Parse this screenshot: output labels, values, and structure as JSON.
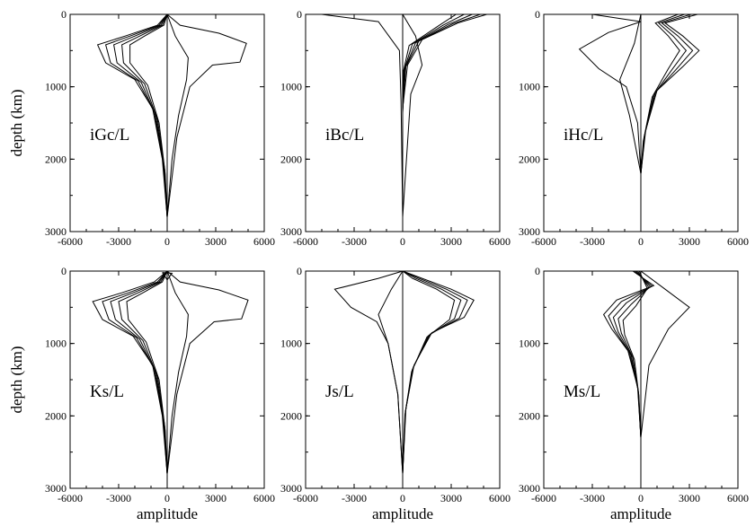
{
  "chart_data": [
    {
      "type": "line",
      "panel_label": "iGc/L",
      "xlim": [
        -6000,
        6000
      ],
      "ylim": [
        0,
        3000
      ],
      "y_inverted": true,
      "xticks": [
        "-6000",
        "-3000",
        "0",
        "3000",
        "6000"
      ],
      "yticks": [
        "0",
        "1000",
        "2000",
        "3000"
      ],
      "ylabel": "depth (km)",
      "xlabel": "",
      "series": [
        {
          "x": [
            0,
            -600,
            -2600,
            -4300,
            -3800,
            -2000,
            -900,
            -300,
            0
          ],
          "y": [
            0,
            150,
            300,
            420,
            670,
            900,
            1300,
            2000,
            2800
          ]
        },
        {
          "x": [
            0,
            -500,
            -2300,
            -3800,
            -3500,
            -1800,
            -800,
            -250,
            0
          ],
          "y": [
            0,
            150,
            300,
            420,
            670,
            920,
            1350,
            2050,
            2800
          ]
        },
        {
          "x": [
            0,
            -400,
            -2000,
            -3300,
            -3100,
            -1600,
            -700,
            -200,
            0
          ],
          "y": [
            0,
            150,
            300,
            420,
            670,
            940,
            1400,
            2100,
            2800
          ]
        },
        {
          "x": [
            0,
            -300,
            -1700,
            -2800,
            -2700,
            -1400,
            -600,
            -150,
            0
          ],
          "y": [
            0,
            150,
            300,
            420,
            670,
            960,
            1450,
            2150,
            2800
          ]
        },
        {
          "x": [
            0,
            -200,
            -1400,
            -2300,
            -2300,
            -1200,
            -500,
            -120,
            0
          ],
          "y": [
            0,
            150,
            300,
            420,
            670,
            980,
            1500,
            2200,
            2800
          ]
        },
        {
          "x": [
            0,
            800,
            3200,
            4900,
            4500,
            2800,
            1400,
            600,
            0
          ],
          "y": [
            0,
            150,
            260,
            400,
            660,
            700,
            1000,
            1700,
            2800
          ]
        },
        {
          "x": [
            0,
            500,
            1300,
            1200,
            700,
            300,
            0
          ],
          "y": [
            0,
            300,
            600,
            900,
            1400,
            2000,
            2800
          ]
        }
      ]
    },
    {
      "type": "line",
      "panel_label": "iBc/L",
      "xlim": [
        -6000,
        6000
      ],
      "ylim": [
        0,
        3000
      ],
      "y_inverted": true,
      "xticks": [
        "-6000",
        "-3000",
        "0",
        "3000",
        "6000"
      ],
      "yticks": [
        "0",
        "1000",
        "2000",
        "3000"
      ],
      "ylabel": "",
      "xlabel": "",
      "series": [
        {
          "x": [
            -5000,
            -1500,
            -200,
            -100,
            0
          ],
          "y": [
            0,
            100,
            500,
            1200,
            2800
          ]
        },
        {
          "x": [
            5200,
            3400,
            1200,
            300,
            0,
            0
          ],
          "y": [
            0,
            120,
            350,
            700,
            1300,
            2800
          ]
        },
        {
          "x": [
            4800,
            3100,
            1000,
            200,
            0,
            0
          ],
          "y": [
            0,
            130,
            370,
            720,
            1320,
            2800
          ]
        },
        {
          "x": [
            4300,
            2800,
            800,
            150,
            0,
            0
          ],
          "y": [
            0,
            140,
            390,
            740,
            1340,
            2800
          ]
        },
        {
          "x": [
            3800,
            2500,
            600,
            100,
            0,
            0
          ],
          "y": [
            0,
            150,
            410,
            760,
            1360,
            2800
          ]
        },
        {
          "x": [
            3300,
            2200,
            400,
            50,
            0,
            0
          ],
          "y": [
            0,
            160,
            430,
            780,
            1380,
            2800
          ]
        },
        {
          "x": [
            0,
            800,
            1200,
            500,
            0
          ],
          "y": [
            0,
            300,
            700,
            1100,
            2800
          ]
        }
      ]
    },
    {
      "type": "line",
      "panel_label": "iHc/L",
      "xlim": [
        -6000,
        6000
      ],
      "ylim": [
        0,
        3000
      ],
      "y_inverted": true,
      "xticks": [
        "-6000",
        "-3000",
        "0",
        "3000",
        "6000"
      ],
      "yticks": [
        "0",
        "1000",
        "2000",
        "3000"
      ],
      "ylabel": "",
      "xlabel": "",
      "series": [
        {
          "x": [
            -3000,
            0,
            -2000,
            -3800,
            -2600,
            -900,
            -200,
            0
          ],
          "y": [
            0,
            100,
            250,
            480,
            750,
            1000,
            1500,
            2200
          ]
        },
        {
          "x": [
            3500,
            1500,
            2600,
            3600,
            2600,
            1000,
            300,
            0
          ],
          "y": [
            0,
            120,
            300,
            500,
            720,
            1050,
            1600,
            2200
          ]
        },
        {
          "x": [
            3100,
            1300,
            2300,
            3200,
            2300,
            900,
            250,
            0
          ],
          "y": [
            0,
            120,
            300,
            500,
            730,
            1080,
            1650,
            2200
          ]
        },
        {
          "x": [
            2700,
            1100,
            2000,
            2800,
            2000,
            800,
            200,
            0
          ],
          "y": [
            0,
            120,
            300,
            500,
            740,
            1110,
            1700,
            2200
          ]
        },
        {
          "x": [
            2300,
            900,
            1700,
            2400,
            1700,
            700,
            150,
            0
          ],
          "y": [
            0,
            120,
            300,
            500,
            750,
            1140,
            1750,
            2200
          ]
        },
        {
          "x": [
            0,
            -400,
            -1300,
            -700,
            0
          ],
          "y": [
            0,
            400,
            900,
            1400,
            2200
          ]
        }
      ]
    },
    {
      "type": "line",
      "panel_label": "Ks/L",
      "xlim": [
        -6000,
        6000
      ],
      "ylim": [
        0,
        3000
      ],
      "y_inverted": true,
      "xticks": [
        "-6000",
        "-3000",
        "0",
        "3000",
        "6000"
      ],
      "yticks": [
        "0",
        "1000",
        "2000",
        "3000"
      ],
      "ylabel": "depth (km)",
      "xlabel": "amplitude",
      "series": [
        {
          "x": [
            0,
            -800,
            -2800,
            -4600,
            -4000,
            -2100,
            -900,
            -300,
            0
          ],
          "y": [
            0,
            150,
            300,
            420,
            670,
            900,
            1300,
            2000,
            2800
          ]
        },
        {
          "x": [
            0,
            -600,
            -2400,
            -4000,
            -3600,
            -1900,
            -800,
            -250,
            0
          ],
          "y": [
            0,
            150,
            300,
            420,
            670,
            920,
            1350,
            2050,
            2800
          ]
        },
        {
          "x": [
            0,
            -500,
            -2100,
            -3500,
            -3200,
            -1700,
            -700,
            -200,
            0
          ],
          "y": [
            0,
            150,
            300,
            420,
            670,
            940,
            1400,
            2100,
            2800
          ]
        },
        {
          "x": [
            0,
            -400,
            -1800,
            -3000,
            -2800,
            -1500,
            -600,
            -150,
            0
          ],
          "y": [
            0,
            150,
            300,
            420,
            670,
            960,
            1450,
            2150,
            2800
          ]
        },
        {
          "x": [
            0,
            -300,
            -1500,
            -2500,
            -2400,
            -1300,
            -500,
            -120,
            0
          ],
          "y": [
            0,
            150,
            300,
            420,
            670,
            980,
            1500,
            2200,
            2800
          ]
        },
        {
          "x": [
            0,
            800,
            3200,
            5000,
            4600,
            2900,
            1400,
            600,
            0
          ],
          "y": [
            0,
            150,
            260,
            400,
            660,
            700,
            1000,
            1700,
            2800
          ]
        },
        {
          "x": [
            -300,
            300,
            0,
            -300
          ],
          "y": [
            20,
            30,
            120,
            20
          ]
        },
        {
          "x": [
            0,
            500,
            1300,
            1200,
            700,
            300,
            0
          ],
          "y": [
            0,
            300,
            600,
            900,
            1400,
            2000,
            2800
          ]
        }
      ]
    },
    {
      "type": "line",
      "panel_label": "Js/L",
      "xlim": [
        -6000,
        6000
      ],
      "ylim": [
        0,
        3000
      ],
      "y_inverted": true,
      "xticks": [
        "-6000",
        "-3000",
        "0",
        "3000",
        "6000"
      ],
      "yticks": [
        "0",
        "1000",
        "2000",
        "3000"
      ],
      "ylabel": "",
      "xlabel": "amplitude",
      "series": [
        {
          "x": [
            0,
            1200,
            3000,
            4400,
            3800,
            1800,
            700,
            200,
            0
          ],
          "y": [
            0,
            100,
            250,
            400,
            640,
            850,
            1300,
            1900,
            2800
          ]
        },
        {
          "x": [
            0,
            1000,
            2700,
            4000,
            3500,
            1700,
            650,
            180,
            0
          ],
          "y": [
            0,
            100,
            250,
            400,
            650,
            870,
            1330,
            1930,
            2800
          ]
        },
        {
          "x": [
            0,
            800,
            2400,
            3600,
            3200,
            1600,
            600,
            160,
            0
          ],
          "y": [
            0,
            100,
            250,
            400,
            660,
            890,
            1360,
            1960,
            2800
          ]
        },
        {
          "x": [
            0,
            600,
            2100,
            3200,
            2900,
            1500,
            550,
            140,
            0
          ],
          "y": [
            0,
            100,
            250,
            400,
            670,
            910,
            1390,
            1990,
            2800
          ]
        },
        {
          "x": [
            0,
            -1500,
            -4200,
            -3200,
            -1600,
            -900,
            -300,
            0
          ],
          "y": [
            0,
            100,
            250,
            500,
            700,
            1000,
            1700,
            2800
          ]
        },
        {
          "x": [
            0,
            -700,
            -1500,
            -900,
            -300,
            0
          ],
          "y": [
            0,
            250,
            600,
            1000,
            1700,
            2800
          ]
        }
      ]
    },
    {
      "type": "line",
      "panel_label": "Ms/L",
      "xlim": [
        -6000,
        6000
      ],
      "ylim": [
        0,
        3000
      ],
      "y_inverted": true,
      "xticks": [
        "-6000",
        "-3000",
        "0",
        "3000",
        "6000"
      ],
      "yticks": [
        "0",
        "1000",
        "2000",
        "3000"
      ],
      "ylabel": "",
      "xlabel": "amplitude",
      "series": [
        {
          "x": [
            -500,
            800,
            -1500,
            -2300,
            -1800,
            -800,
            -200,
            0
          ],
          "y": [
            0,
            200,
            400,
            600,
            800,
            1100,
            1600,
            2300
          ]
        },
        {
          "x": [
            -400,
            700,
            -1200,
            -2000,
            -1600,
            -700,
            -180,
            0
          ],
          "y": [
            0,
            210,
            420,
            620,
            820,
            1130,
            1630,
            2300
          ]
        },
        {
          "x": [
            -300,
            600,
            -900,
            -1700,
            -1400,
            -600,
            -160,
            0
          ],
          "y": [
            0,
            220,
            440,
            640,
            840,
            1160,
            1660,
            2300
          ]
        },
        {
          "x": [
            -200,
            500,
            -600,
            -1400,
            -1200,
            -500,
            -140,
            0
          ],
          "y": [
            0,
            230,
            460,
            660,
            860,
            1190,
            1690,
            2300
          ]
        },
        {
          "x": [
            -100,
            400,
            -300,
            -1100,
            -1000,
            -400,
            -120,
            0
          ],
          "y": [
            0,
            240,
            480,
            680,
            880,
            1220,
            1720,
            2300
          ]
        },
        {
          "x": [
            0,
            1500,
            3000,
            1700,
            500,
            0
          ],
          "y": [
            0,
            250,
            500,
            800,
            1300,
            2300
          ]
        }
      ]
    }
  ]
}
